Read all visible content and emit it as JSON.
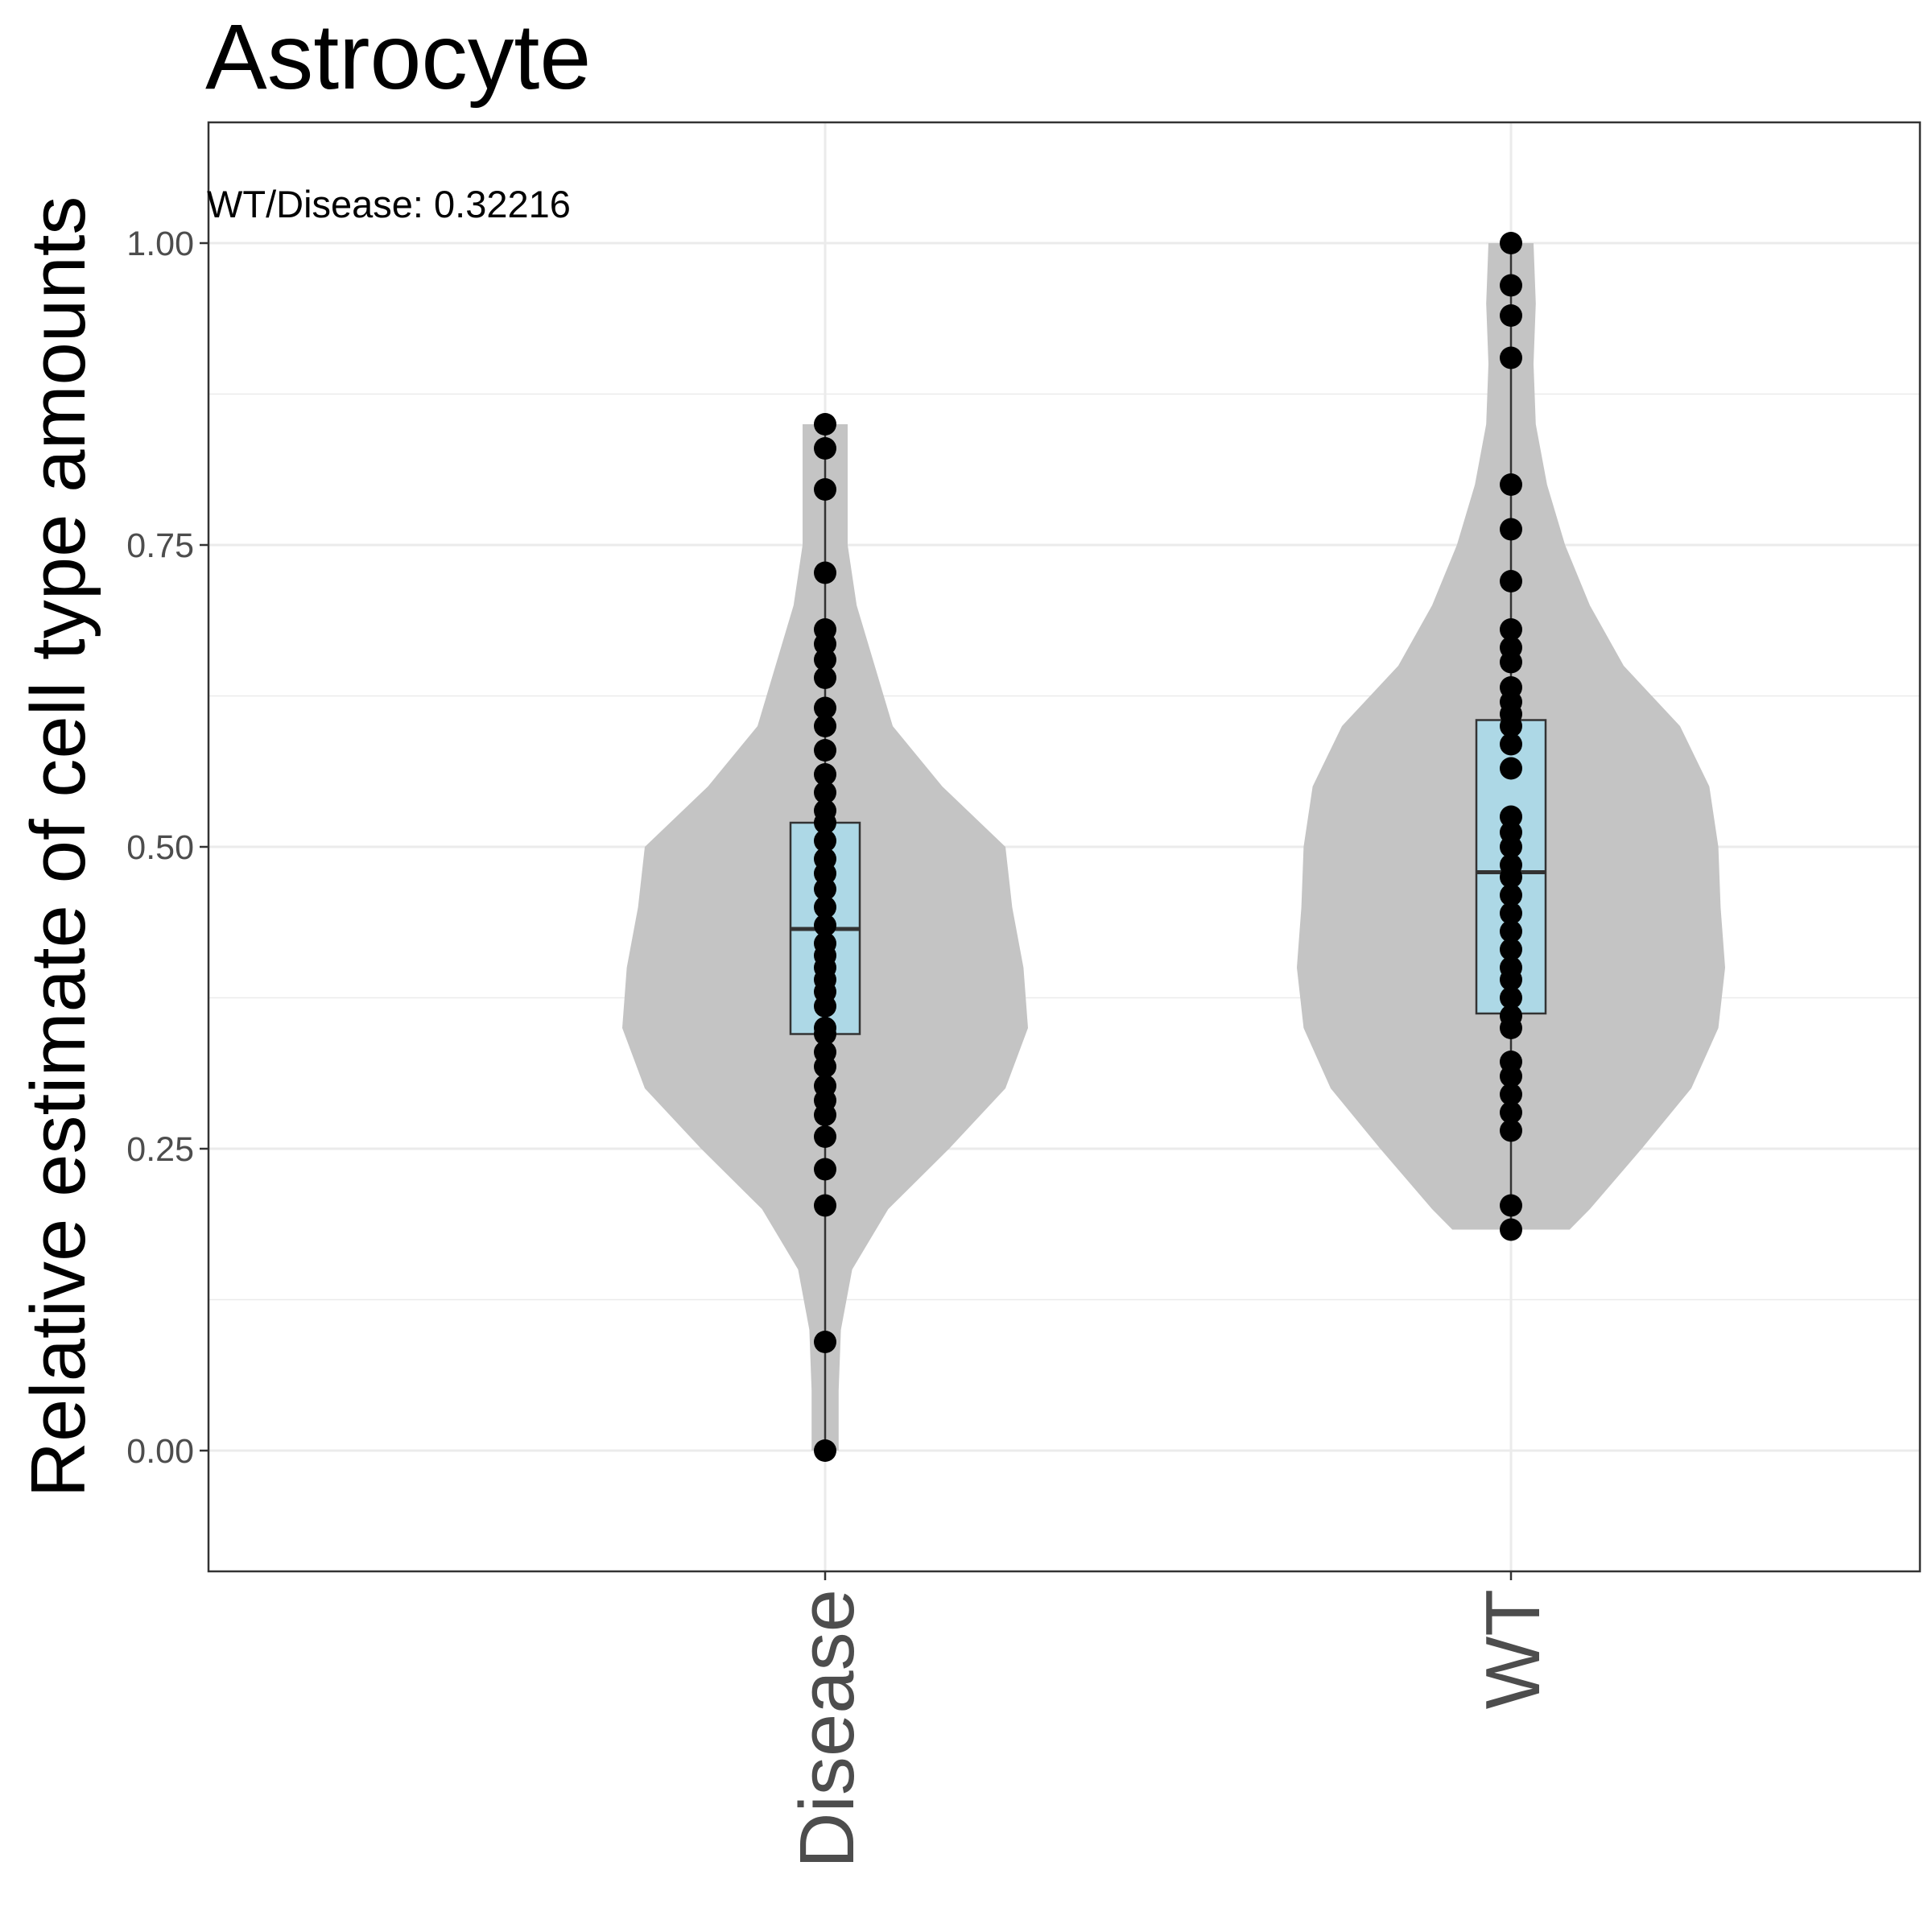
{
  "chart_data": {
    "type": "violin",
    "title": "Astrocyte",
    "xlabel": "",
    "ylabel": "Relative estimate of cell type amounts",
    "ylim": [
      -0.1,
      1.1
    ],
    "yticks": [
      "0.00",
      "0.25",
      "0.50",
      "0.75",
      "1.00"
    ],
    "categories": [
      "Disease",
      "WT"
    ],
    "annotation": "WT/Disease: 0.32216",
    "grid": true,
    "colors": {
      "violin": "#c4c4c4",
      "box": "#add8e6",
      "point": "#000000",
      "grid": "#ebebeb"
    },
    "groups": [
      {
        "name": "Disease",
        "box": {
          "min": 0.0,
          "q1": 0.345,
          "median": 0.432,
          "q3": 0.52,
          "max": 0.85
        },
        "points": [
          0.0,
          0.09,
          0.203,
          0.233,
          0.26,
          0.278,
          0.29,
          0.302,
          0.318,
          0.33,
          0.345,
          0.35,
          0.368,
          0.38,
          0.39,
          0.4,
          0.41,
          0.42,
          0.435,
          0.45,
          0.465,
          0.478,
          0.49,
          0.505,
          0.52,
          0.53,
          0.545,
          0.56,
          0.58,
          0.6,
          0.615,
          0.64,
          0.655,
          0.668,
          0.68,
          0.727,
          0.796,
          0.83,
          0.85
        ],
        "density": [
          [
            0.0,
            0.06
          ],
          [
            0.05,
            0.06
          ],
          [
            0.1,
            0.07
          ],
          [
            0.15,
            0.12
          ],
          [
            0.2,
            0.28
          ],
          [
            0.25,
            0.55
          ],
          [
            0.3,
            0.8
          ],
          [
            0.35,
            0.9
          ],
          [
            0.4,
            0.88
          ],
          [
            0.45,
            0.83
          ],
          [
            0.5,
            0.8
          ],
          [
            0.55,
            0.52
          ],
          [
            0.6,
            0.3
          ],
          [
            0.65,
            0.22
          ],
          [
            0.7,
            0.14
          ],
          [
            0.75,
            0.1
          ],
          [
            0.8,
            0.1
          ],
          [
            0.85,
            0.1
          ]
        ]
      },
      {
        "name": "WT",
        "box": {
          "min": 0.183,
          "q1": 0.362,
          "median": 0.479,
          "q3": 0.605,
          "max": 1.0
        },
        "points": [
          0.183,
          0.203,
          0.265,
          0.28,
          0.295,
          0.31,
          0.322,
          0.35,
          0.36,
          0.375,
          0.39,
          0.4,
          0.415,
          0.43,
          0.445,
          0.46,
          0.475,
          0.485,
          0.5,
          0.512,
          0.525,
          0.565,
          0.585,
          0.6,
          0.61,
          0.62,
          0.632,
          0.653,
          0.665,
          0.68,
          0.72,
          0.763,
          0.8,
          0.905,
          0.94,
          0.965,
          1.0
        ]
      }
    ]
  }
}
